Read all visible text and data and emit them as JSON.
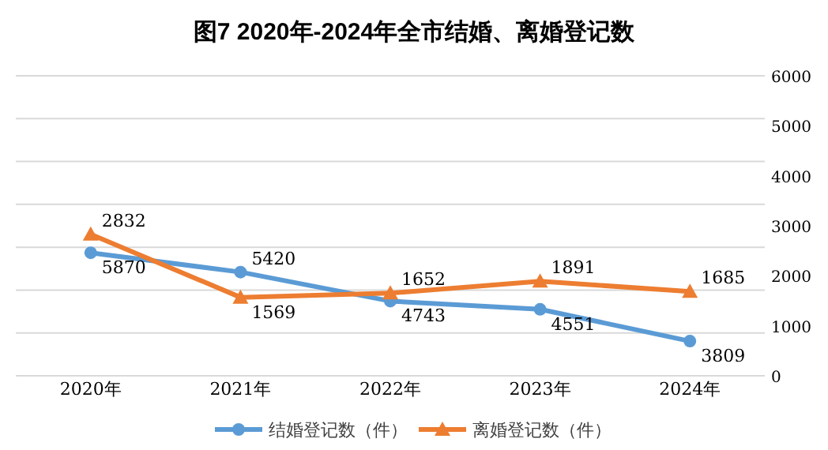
{
  "chart_data": {
    "type": "line",
    "title": "图7 2020年-2024年全市结婚、离婚登记数",
    "categories": [
      "2020年",
      "2021年",
      "2022年",
      "2023年",
      "2024年"
    ],
    "series": [
      {
        "name": "结婚登记数（件）",
        "color": "#5b9bd5",
        "marker": "circle",
        "values": [
          5870,
          5420,
          4743,
          4551,
          3809
        ]
      },
      {
        "name": "离婚登记数（件）",
        "color": "#ed7d31",
        "marker": "triangle",
        "axis": "y2",
        "values": [
          2832,
          1569,
          1652,
          1891,
          1685
        ]
      }
    ],
    "ylim": [
      3000,
      10000
    ],
    "yticks": [
      {
        "value": 3000,
        "label": null
      },
      {
        "value": 4000,
        "label": null
      },
      {
        "value": 5000,
        "label": null
      },
      {
        "value": 6000,
        "label": null
      },
      {
        "value": 7000,
        "label": null
      },
      {
        "value": 8000,
        "label": null
      },
      {
        "value": 9000,
        "label": null
      },
      {
        "value": 10000,
        "label": null
      }
    ],
    "y2lim": [
      0,
      6000
    ],
    "y2ticks": [
      0,
      1000,
      2000,
      3000,
      4000,
      5000,
      6000
    ],
    "grid": "y",
    "data_labels": true,
    "legend": "bottom",
    "line_style": "solid"
  }
}
